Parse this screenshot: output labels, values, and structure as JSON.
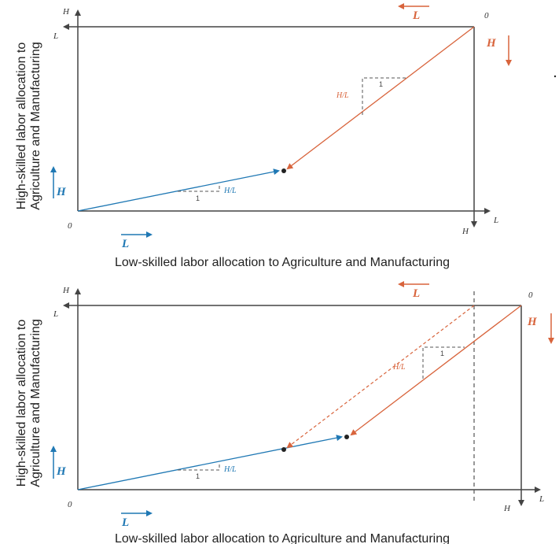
{
  "colors": {
    "blue": "#1f78b4",
    "orange": "#d8643c",
    "axis": "#444444",
    "dashed": "#555555"
  },
  "panels": [
    {
      "xlabel": "Low-skilled labor allocation to Agriculture and Manufacturing",
      "ylabel_line1": "High-skilled labor allocation to",
      "ylabel_line2": "Agriculture and Manufacturing",
      "labels": {
        "Ha_axis": "H",
        "La_top": "L",
        "Om": "0",
        "La_corner": "L",
        "Hm_corner": "H",
        "Oa": "0",
        "H_blue": "H",
        "L_blue": "L",
        "L_orange": "L",
        "H_orange": "H",
        "ratio_blue": "H/L",
        "ratio_orange": "H/L",
        "one_blue": "1",
        "one_orange": "1"
      }
    },
    {
      "xlabel": "Low-skilled labor allocation to Agriculture and Manufacturing",
      "ylabel_line1": "High-skilled labor allocation to",
      "ylabel_line2": "Agriculture and Manufacturing",
      "labels": {
        "Ha_axis": "H",
        "La_top": "L",
        "Om": "0",
        "La_corner": "L",
        "Hm_corner": "H",
        "Oa": "0",
        "H_blue": "H",
        "L_blue": "L",
        "L_orange": "L",
        "H_orange": "H",
        "ratio_blue": "H/L",
        "ratio_orange": "H/L",
        "one_blue": "1",
        "one_orange": "1"
      }
    }
  ]
}
